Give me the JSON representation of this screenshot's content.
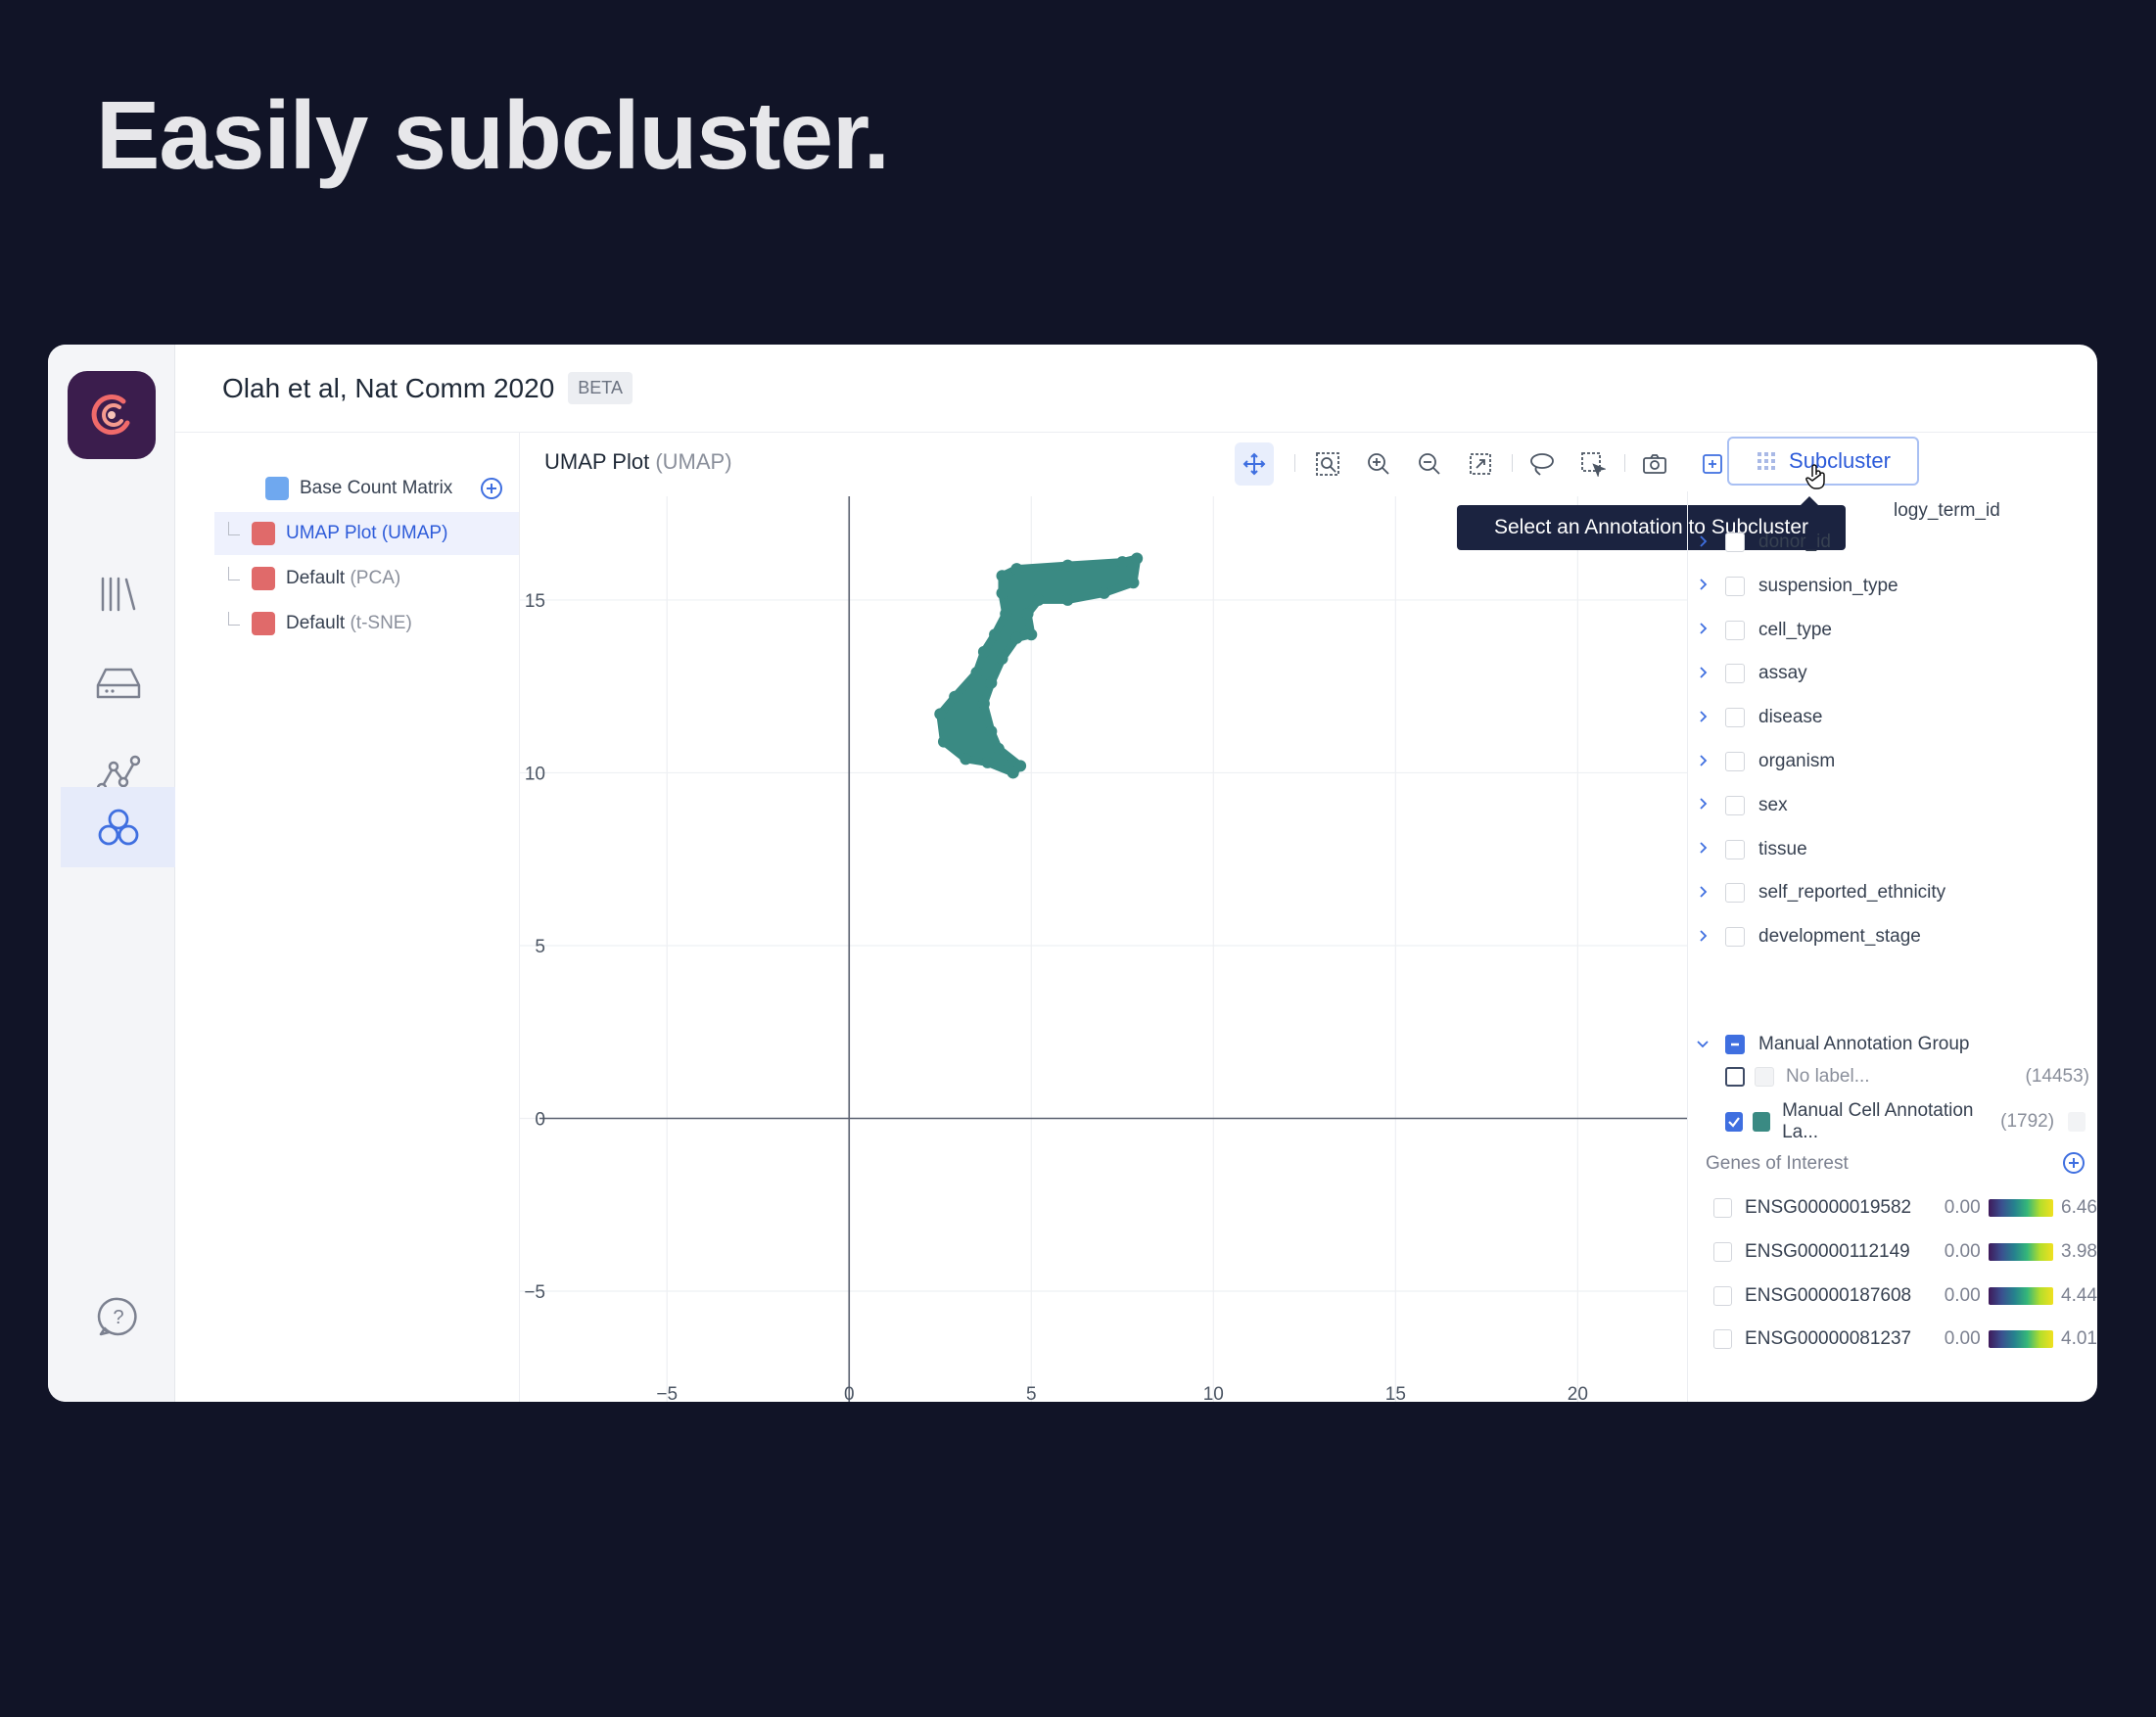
{
  "headline": "Easily subcluster.",
  "app": {
    "title": "Olah et al, Nat Comm 2020",
    "badge": "BETA"
  },
  "rail": {
    "icons": [
      "library-icon",
      "storage-icon",
      "pipeline-icon",
      "clusters-icon",
      "help-icon"
    ],
    "active": "clusters-icon"
  },
  "tree": {
    "root": {
      "label": "Base Count Matrix"
    },
    "items": [
      {
        "name": "UMAP Plot",
        "suffix": "(UMAP)"
      },
      {
        "name": "Default",
        "suffix": "(PCA)"
      },
      {
        "name": "Default",
        "suffix": "(t-SNE)"
      }
    ]
  },
  "plot": {
    "title": "UMAP Plot",
    "suffix": "(UMAP)",
    "toolbar": [
      "pan-icon",
      "box-zoom-icon",
      "zoom-in-icon",
      "zoom-out-icon",
      "autoscale-icon",
      "lasso-select-icon",
      "box-select-icon",
      "camera-icon",
      "add-icon",
      "chevron-down-icon"
    ],
    "subcluster_label": "Subcluster",
    "tooltip": "Select an Annotation to Subcluster"
  },
  "chart_data": {
    "type": "scatter",
    "x_ticks": [
      "−5",
      "0",
      "5",
      "10",
      "15",
      "20"
    ],
    "y_ticks": [
      "15",
      "10",
      "5",
      "0",
      "−5"
    ],
    "xlim": [
      -8.5,
      23
    ],
    "ylim": [
      -8.2,
      18
    ],
    "grid": true,
    "color": "#3a8a83",
    "cluster_outline": [
      [
        4.2,
        15.7
      ],
      [
        4.6,
        15.9
      ],
      [
        6.0,
        16.0
      ],
      [
        7.5,
        16.1
      ],
      [
        7.9,
        16.2
      ],
      [
        7.8,
        15.5
      ],
      [
        7.0,
        15.2
      ],
      [
        6.0,
        15.0
      ],
      [
        5.2,
        15.0
      ],
      [
        4.9,
        14.6
      ],
      [
        5.0,
        14.0
      ],
      [
        4.6,
        13.9
      ],
      [
        4.2,
        13.3
      ],
      [
        3.9,
        12.6
      ],
      [
        3.7,
        12.0
      ],
      [
        3.9,
        11.2
      ],
      [
        4.1,
        10.7
      ],
      [
        4.7,
        10.2
      ],
      [
        4.5,
        10.0
      ],
      [
        3.8,
        10.3
      ],
      [
        3.2,
        10.4
      ],
      [
        2.6,
        10.9
      ],
      [
        2.5,
        11.7
      ],
      [
        2.9,
        12.2
      ],
      [
        3.5,
        12.9
      ],
      [
        3.7,
        13.5
      ],
      [
        4.0,
        14.0
      ],
      [
        4.3,
        14.6
      ],
      [
        4.2,
        15.2
      ]
    ]
  },
  "annotations": {
    "partial_top_label": "logy_term_id",
    "fields": [
      "donor_id",
      "suspension_type",
      "cell_type",
      "assay",
      "disease",
      "organism",
      "sex",
      "tissue",
      "self_reported_ethnicity",
      "development_stage"
    ],
    "group": {
      "label": "Manual Annotation Group",
      "items": [
        {
          "label": "No label...",
          "count": "(14453)",
          "checked": false,
          "color": "#f2f3f5"
        },
        {
          "label": "Manual Cell Annotation La...",
          "count": "(1792)",
          "checked": true,
          "color": "#3a8a83"
        }
      ]
    }
  },
  "genes": {
    "title": "Genes of Interest",
    "items": [
      {
        "id": "ENSG00000019582",
        "min": "0.00",
        "max": "6.46"
      },
      {
        "id": "ENSG00000112149",
        "min": "0.00",
        "max": "3.98"
      },
      {
        "id": "ENSG00000187608",
        "min": "0.00",
        "max": "4.44"
      },
      {
        "id": "ENSG00000081237",
        "min": "0.00",
        "max": "4.01"
      }
    ]
  }
}
